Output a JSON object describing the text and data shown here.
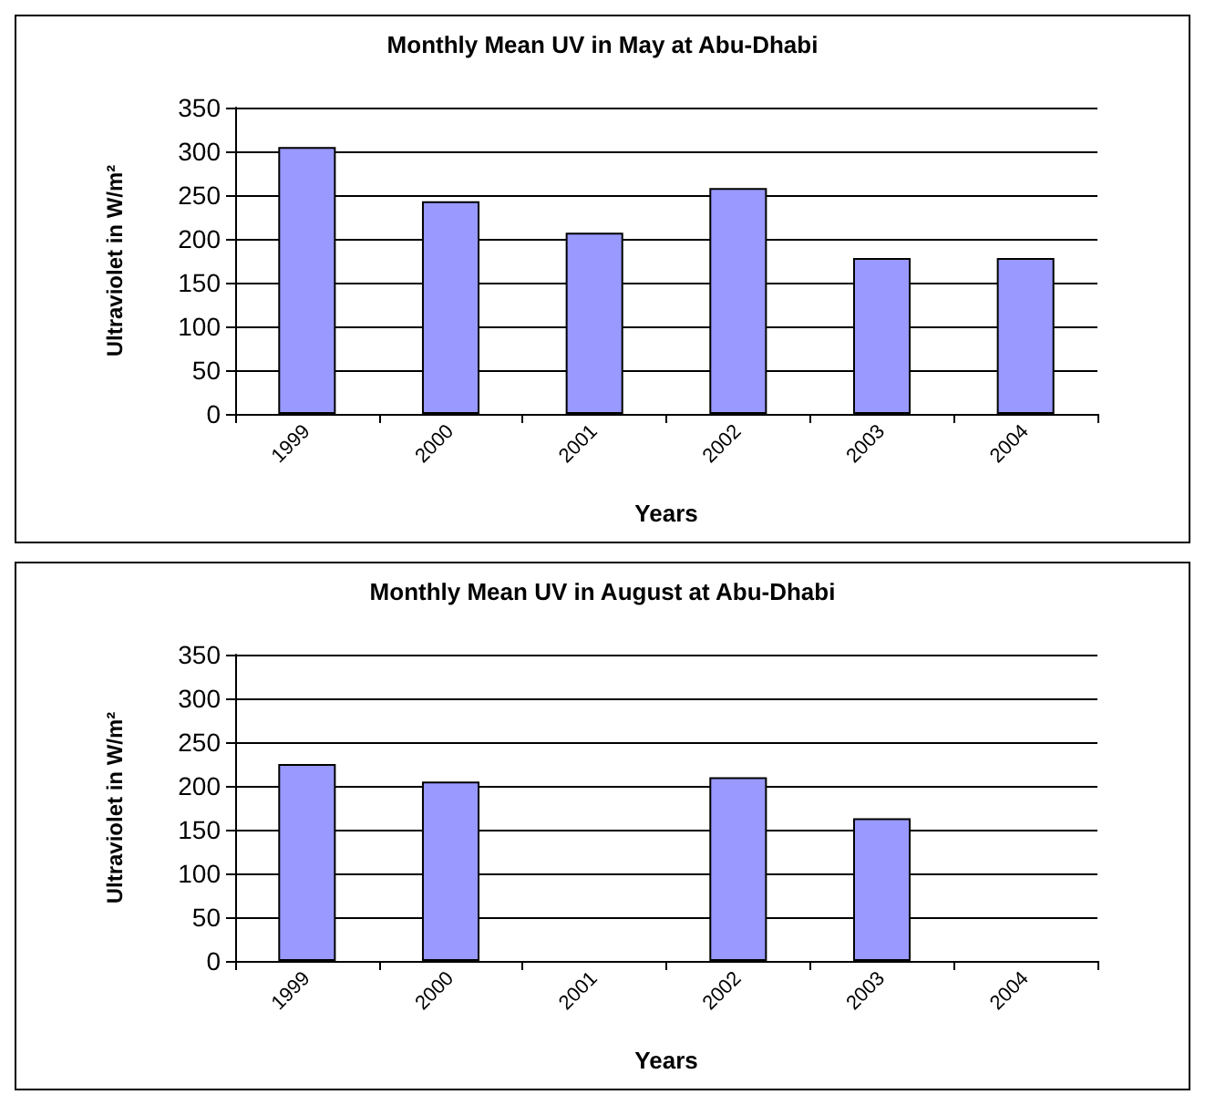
{
  "chart_data": [
    {
      "type": "bar",
      "title": "Monthly Mean UV in May at Abu-Dhabi",
      "xlabel": "Years",
      "ylabel": "Ultraviolet in W/m²",
      "categories": [
        "1999",
        "2000",
        "2001",
        "2002",
        "2003",
        "2004"
      ],
      "series": [
        {
          "color": "#9999ff",
          "values": [
            305,
            243,
            207,
            258,
            178,
            178
          ]
        }
      ],
      "ylim": [
        0,
        350
      ],
      "yticks": [
        0,
        50,
        100,
        150,
        200,
        250,
        300,
        350
      ],
      "grid": "y"
    },
    {
      "type": "bar",
      "title": "Monthly Mean UV in August at Abu-Dhabi",
      "xlabel": "Years",
      "ylabel": "Ultraviolet in W/m²",
      "categories": [
        "1999",
        "2000",
        "2001",
        "2002",
        "2003",
        "2004"
      ],
      "series": [
        {
          "color": "#9999ff",
          "values": [
            225,
            205,
            null,
            210,
            163,
            null
          ]
        }
      ],
      "ylim": [
        0,
        350
      ],
      "yticks": [
        0,
        50,
        100,
        150,
        200,
        250,
        300,
        350
      ],
      "grid": "y"
    }
  ]
}
